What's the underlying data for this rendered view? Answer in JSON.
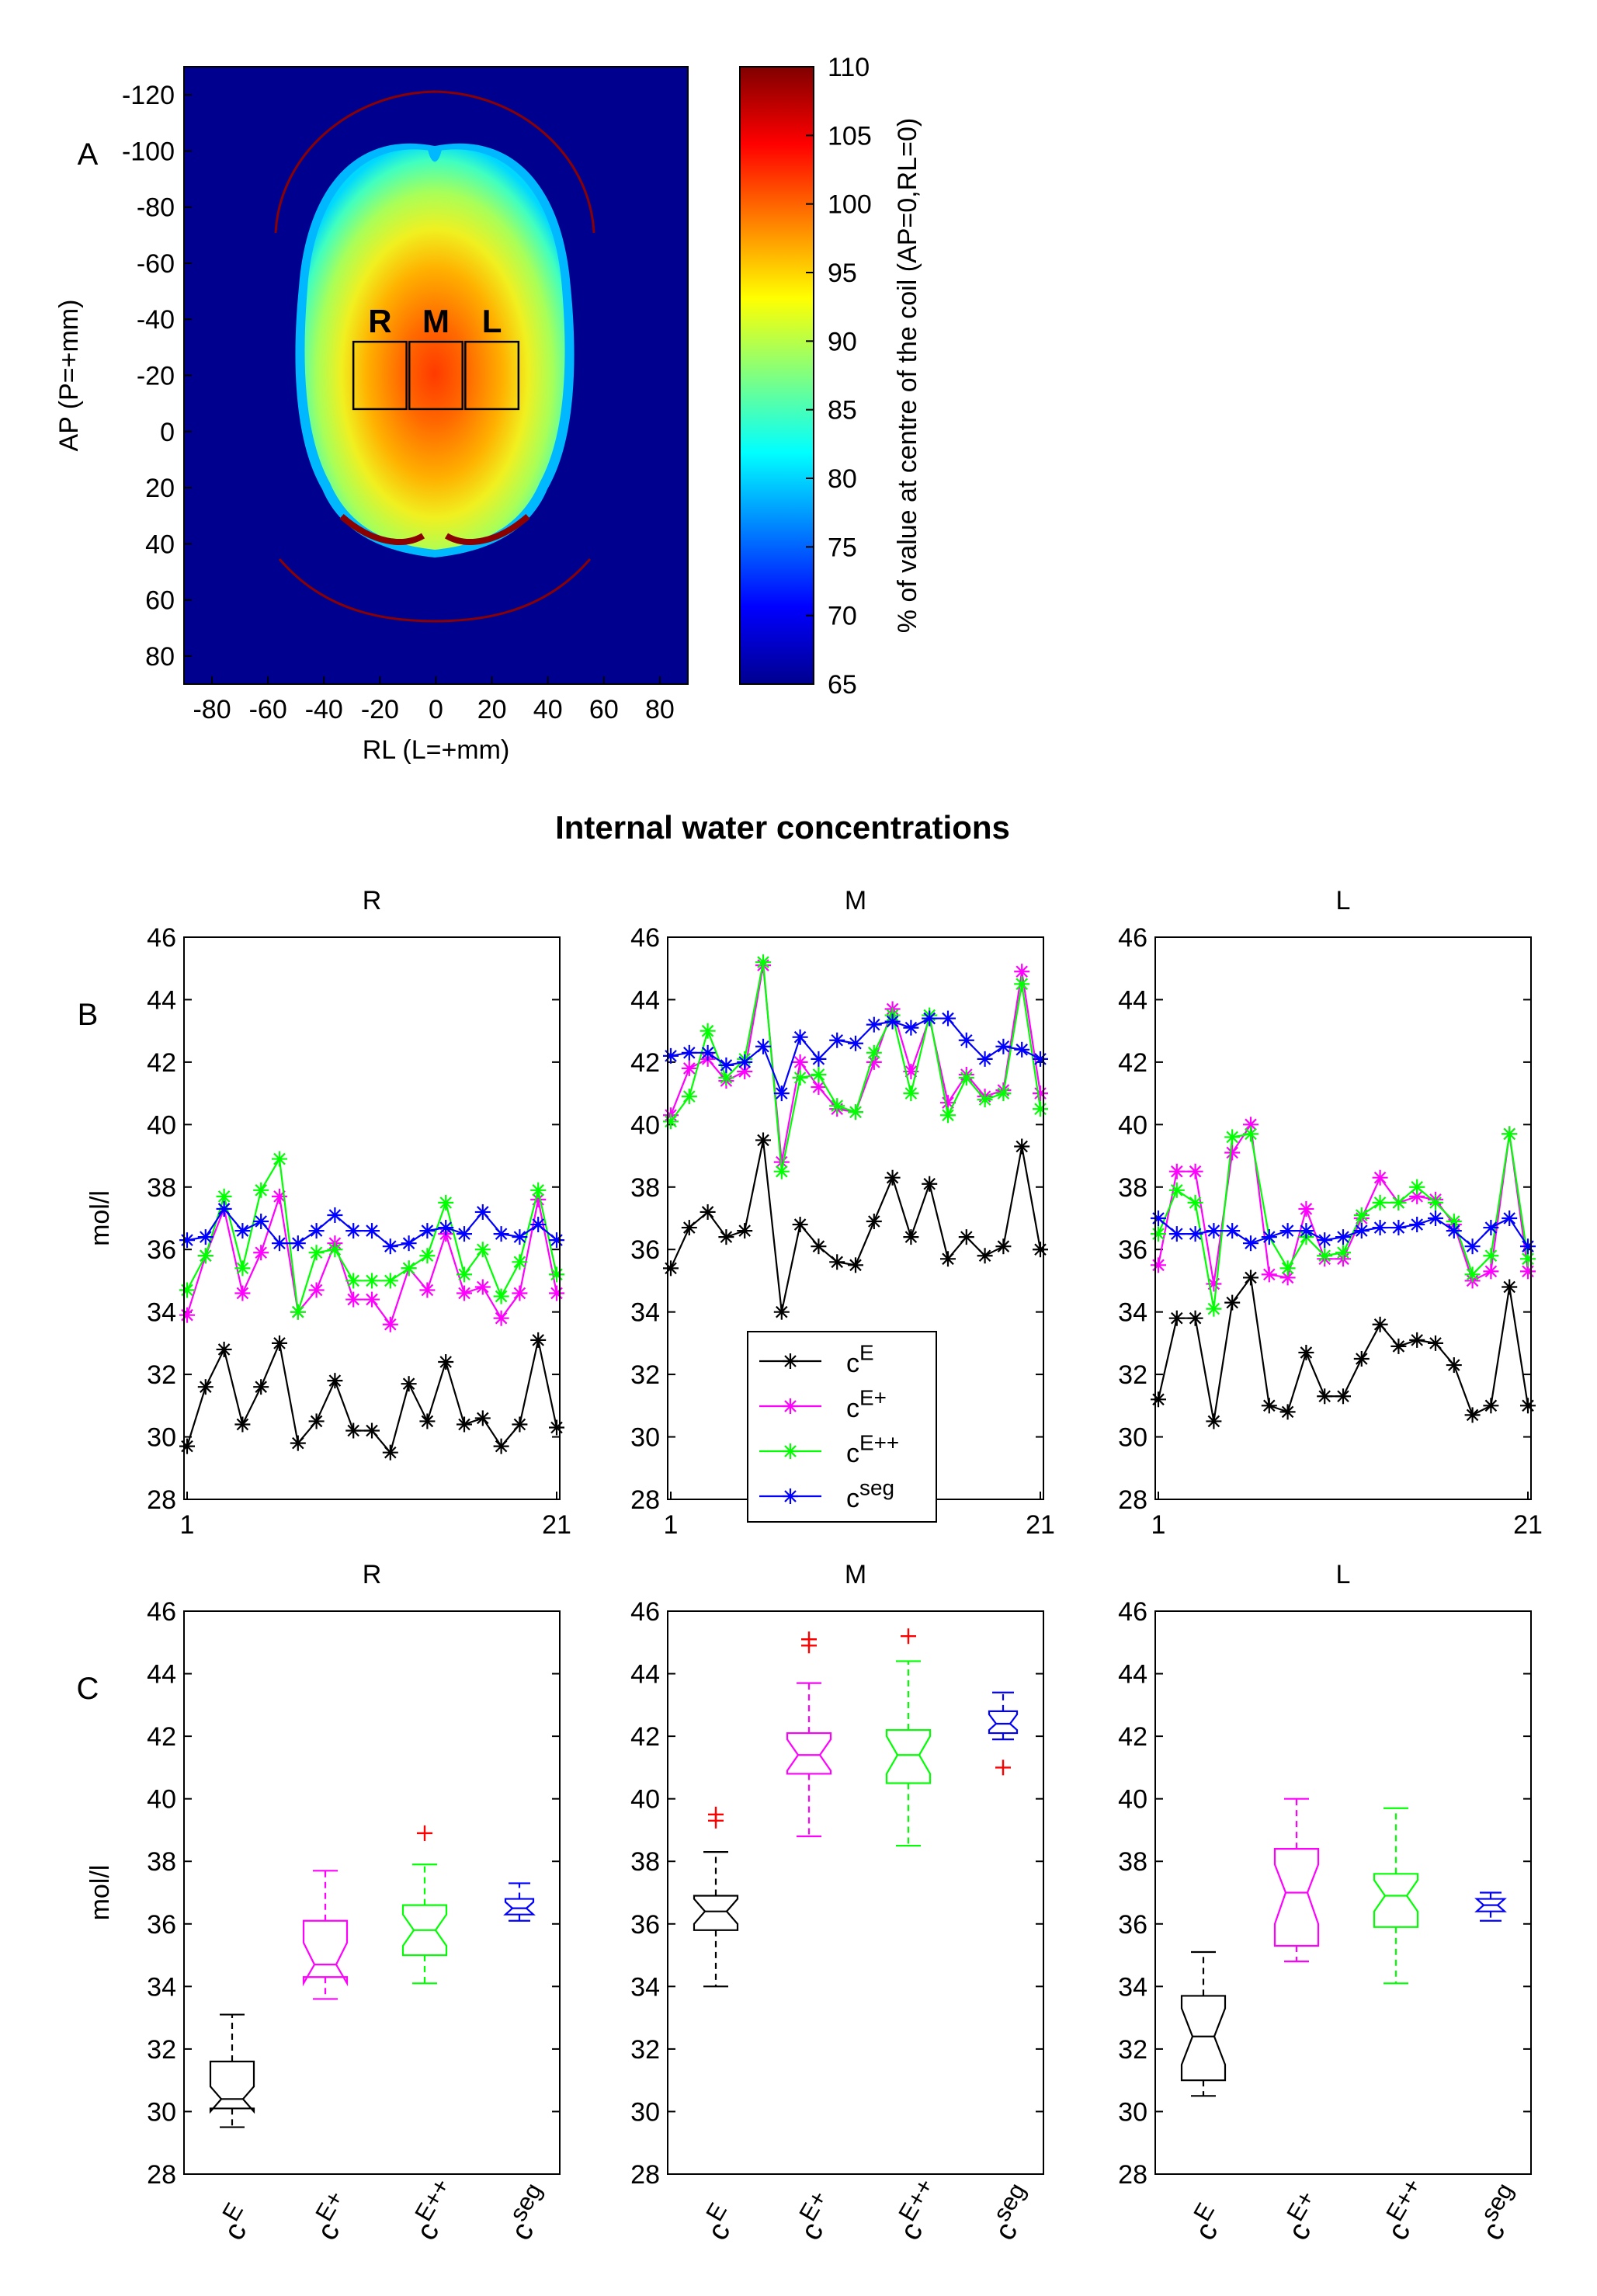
{
  "panel_labels": {
    "a": "A",
    "b": "B",
    "c": "C"
  },
  "section_title": "Internal water concentrations",
  "chart_data": [
    {
      "id": "A",
      "type": "heatmap",
      "xlabel": "RL (L=+mm)",
      "ylabel": "AP (P=+mm)",
      "xticks": [
        -80,
        -60,
        -40,
        -20,
        0,
        20,
        40,
        60,
        80
      ],
      "yticks": [
        -120,
        -100,
        -80,
        -60,
        -40,
        -20,
        0,
        20,
        40,
        60,
        80
      ],
      "xlim": [
        -90,
        90
      ],
      "ylim": [
        -130,
        90
      ],
      "roi_labels": [
        "R",
        "M",
        "L"
      ],
      "colorbar": {
        "label": "% of value at centre of the coil (AP=0,RL=0)",
        "ticks": [
          65,
          70,
          75,
          80,
          85,
          90,
          95,
          100,
          105,
          110
        ],
        "range": [
          65,
          110
        ]
      }
    },
    {
      "id": "B",
      "type": "line",
      "ylabel": "mol/l",
      "ylim": [
        28,
        46
      ],
      "yticks": [
        28,
        30,
        32,
        34,
        36,
        38,
        40,
        42,
        44,
        46
      ],
      "xticks": [
        1,
        21
      ],
      "legend": [
        {
          "base": "c",
          "sup": "E",
          "color": "#000000"
        },
        {
          "base": "c",
          "sup": "E+",
          "color": "#ff00ff"
        },
        {
          "base": "c",
          "sup": "E++",
          "color": "#00ff00"
        },
        {
          "base": "c",
          "sup": "seg",
          "color": "#0000ff"
        }
      ],
      "panels": [
        {
          "title": "R",
          "series": [
            {
              "name": "cE",
              "color": "#000000",
              "values": [
                29.7,
                31.6,
                32.8,
                30.4,
                31.6,
                33.0,
                29.8,
                30.5,
                31.8,
                30.2,
                30.2,
                29.5,
                31.7,
                30.5,
                32.4,
                30.4,
                30.6,
                29.7,
                30.4,
                33.1,
                30.3
              ]
            },
            {
              "name": "cE+",
              "color": "#ff00ff",
              "values": [
                33.9,
                35.8,
                37.3,
                34.6,
                35.9,
                37.7,
                34.0,
                34.7,
                36.2,
                34.4,
                34.4,
                33.6,
                35.4,
                34.7,
                36.5,
                34.6,
                34.8,
                33.8,
                34.6,
                37.6,
                34.6
              ]
            },
            {
              "name": "cE++",
              "color": "#00ff00",
              "values": [
                34.7,
                35.8,
                37.7,
                35.4,
                37.9,
                38.9,
                34.0,
                35.9,
                36.0,
                35.0,
                35.0,
                35.0,
                35.4,
                35.8,
                37.5,
                35.2,
                36.0,
                34.5,
                35.6,
                37.9,
                35.2
              ]
            },
            {
              "name": "cseg",
              "color": "#0000ff",
              "values": [
                36.3,
                36.4,
                37.3,
                36.6,
                36.9,
                36.2,
                36.2,
                36.6,
                37.1,
                36.6,
                36.6,
                36.1,
                36.2,
                36.6,
                36.7,
                36.5,
                37.2,
                36.5,
                36.4,
                36.8,
                36.3
              ]
            }
          ]
        },
        {
          "title": "M",
          "series": [
            {
              "name": "cE",
              "color": "#000000",
              "values": [
                35.4,
                36.7,
                37.2,
                36.4,
                36.6,
                39.5,
                34.0,
                36.8,
                36.1,
                35.6,
                35.5,
                36.9,
                38.3,
                36.4,
                38.1,
                35.7,
                36.4,
                35.8,
                36.1,
                39.3,
                36.0
              ]
            },
            {
              "name": "cE+",
              "color": "#ff00ff",
              "values": [
                40.3,
                41.8,
                42.1,
                41.4,
                41.7,
                45.1,
                38.8,
                42.0,
                41.2,
                40.5,
                40.4,
                42.0,
                43.7,
                41.7,
                43.4,
                40.7,
                41.6,
                40.9,
                41.1,
                44.9,
                41.0
              ]
            },
            {
              "name": "cE++",
              "color": "#00ff00",
              "values": [
                40.1,
                40.9,
                43.0,
                41.5,
                42.1,
                45.2,
                38.5,
                41.5,
                41.6,
                40.6,
                40.4,
                42.3,
                43.5,
                41.0,
                43.5,
                40.3,
                41.5,
                40.8,
                41.0,
                44.5,
                40.5
              ]
            },
            {
              "name": "cseg",
              "color": "#0000ff",
              "values": [
                42.2,
                42.3,
                42.3,
                41.9,
                42.0,
                42.5,
                41.0,
                42.8,
                42.1,
                42.7,
                42.6,
                43.2,
                43.3,
                43.1,
                43.4,
                43.4,
                42.7,
                42.1,
                42.5,
                42.4,
                42.1
              ]
            }
          ]
        },
        {
          "title": "L",
          "series": [
            {
              "name": "cE",
              "color": "#000000",
              "values": [
                31.2,
                33.8,
                33.8,
                30.5,
                34.3,
                35.1,
                31.0,
                30.8,
                32.7,
                31.3,
                31.3,
                32.5,
                33.6,
                32.9,
                33.1,
                33.0,
                32.3,
                30.7,
                31.0,
                34.8,
                31.0
              ]
            },
            {
              "name": "cE+",
              "color": "#ff00ff",
              "values": [
                35.5,
                38.5,
                38.5,
                34.9,
                39.1,
                40.0,
                35.2,
                35.1,
                37.3,
                35.7,
                35.7,
                37.0,
                38.3,
                37.5,
                37.7,
                37.6,
                36.8,
                35.0,
                35.3,
                39.7,
                35.3
              ]
            },
            {
              "name": "cE++",
              "color": "#00ff00",
              "values": [
                36.5,
                37.9,
                37.5,
                34.1,
                39.6,
                39.7,
                36.4,
                35.4,
                36.4,
                35.8,
                35.9,
                37.1,
                37.5,
                37.5,
                38.0,
                37.5,
                36.9,
                35.2,
                35.8,
                39.7,
                35.7
              ]
            },
            {
              "name": "cseg",
              "color": "#0000ff",
              "values": [
                37.0,
                36.5,
                36.5,
                36.6,
                36.6,
                36.2,
                36.4,
                36.6,
                36.6,
                36.3,
                36.4,
                36.6,
                36.7,
                36.7,
                36.8,
                37.0,
                36.6,
                36.1,
                36.7,
                37.0,
                36.1
              ]
            }
          ]
        }
      ]
    },
    {
      "id": "C",
      "type": "boxplot",
      "ylabel": "mol/l",
      "ylim": [
        28,
        46
      ],
      "yticks": [
        28,
        30,
        32,
        34,
        36,
        38,
        40,
        42,
        44,
        46
      ],
      "categories": [
        {
          "base": "c",
          "sup": "E"
        },
        {
          "base": "c",
          "sup": "E+"
        },
        {
          "base": "c",
          "sup": "E++"
        },
        {
          "base": "c",
          "sup": "seg"
        }
      ],
      "panels": [
        {
          "title": "R",
          "boxes": [
            {
              "color": "#000000",
              "q1": 30.1,
              "median": 30.4,
              "q3": 31.6,
              "wlo": 29.5,
              "whi": 33.1,
              "nlo": 30.0,
              "nhi": 30.8,
              "outliers": []
            },
            {
              "color": "#ff00ff",
              "q1": 34.3,
              "median": 34.7,
              "q3": 36.1,
              "wlo": 33.6,
              "whi": 37.7,
              "nlo": 34.1,
              "nhi": 35.4,
              "outliers": []
            },
            {
              "color": "#00ff00",
              "q1": 35.0,
              "median": 35.8,
              "q3": 36.6,
              "wlo": 34.1,
              "whi": 37.9,
              "nlo": 35.3,
              "nhi": 36.3,
              "outliers": [
                38.9
              ]
            },
            {
              "color": "#0000ff",
              "q1": 36.3,
              "median": 36.5,
              "q3": 36.8,
              "wlo": 36.1,
              "whi": 37.3,
              "nlo": 36.3,
              "nhi": 36.7,
              "outliers": []
            }
          ]
        },
        {
          "title": "M",
          "boxes": [
            {
              "color": "#000000",
              "q1": 35.8,
              "median": 36.4,
              "q3": 36.9,
              "wlo": 34.0,
              "whi": 38.3,
              "nlo": 36.0,
              "nhi": 36.8,
              "outliers": [
                39.3,
                39.5
              ]
            },
            {
              "color": "#ff00ff",
              "q1": 40.8,
              "median": 41.4,
              "q3": 42.1,
              "wlo": 38.8,
              "whi": 43.7,
              "nlo": 40.9,
              "nhi": 41.9,
              "outliers": [
                44.9,
                45.1
              ]
            },
            {
              "color": "#00ff00",
              "q1": 40.5,
              "median": 41.4,
              "q3": 42.2,
              "wlo": 38.5,
              "whi": 44.4,
              "nlo": 40.8,
              "nhi": 42.0,
              "outliers": [
                45.2
              ]
            },
            {
              "color": "#0000ff",
              "q1": 42.1,
              "median": 42.4,
              "q3": 42.8,
              "wlo": 41.9,
              "whi": 43.4,
              "nlo": 42.2,
              "nhi": 42.7,
              "outliers": [
                41.0
              ]
            }
          ]
        },
        {
          "title": "L",
          "boxes": [
            {
              "color": "#000000",
              "q1": 31.0,
              "median": 32.4,
              "q3": 33.7,
              "wlo": 30.5,
              "whi": 35.1,
              "nlo": 31.5,
              "nhi": 33.3,
              "outliers": []
            },
            {
              "color": "#ff00ff",
              "q1": 35.3,
              "median": 37.0,
              "q3": 38.4,
              "wlo": 34.8,
              "whi": 40.0,
              "nlo": 36.0,
              "nhi": 37.9,
              "outliers": []
            },
            {
              "color": "#00ff00",
              "q1": 35.9,
              "median": 36.9,
              "q3": 37.6,
              "wlo": 34.1,
              "whi": 39.7,
              "nlo": 36.4,
              "nhi": 37.4,
              "outliers": []
            },
            {
              "color": "#0000ff",
              "q1": 36.4,
              "median": 36.6,
              "q3": 36.8,
              "wlo": 36.1,
              "whi": 37.0,
              "nlo": 36.4,
              "nhi": 36.8,
              "outliers": []
            }
          ]
        }
      ]
    }
  ]
}
